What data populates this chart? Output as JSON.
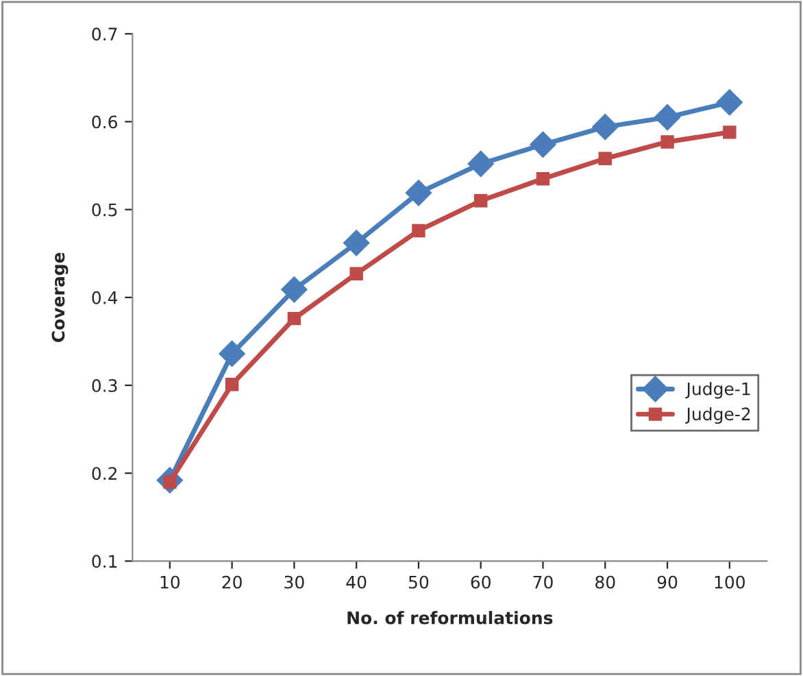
{
  "chart_data": {
    "type": "line",
    "xlabel": "No. of reformulations",
    "ylabel": "Coverage",
    "categories": [
      "10",
      "20",
      "30",
      "40",
      "50",
      "60",
      "70",
      "80",
      "90",
      "100"
    ],
    "series": [
      {
        "name": "Judge-1",
        "color": "#4a7ebb",
        "marker": "diamond",
        "values": [
          0.192,
          0.336,
          0.409,
          0.462,
          0.519,
          0.552,
          0.574,
          0.594,
          0.605,
          0.622
        ]
      },
      {
        "name": "Judge-2",
        "color": "#be4b48",
        "marker": "square",
        "values": [
          0.19,
          0.301,
          0.376,
          0.427,
          0.476,
          0.51,
          0.535,
          0.558,
          0.577,
          0.588
        ]
      }
    ],
    "ylim": [
      0.1,
      0.7
    ],
    "yticks": [
      0.1,
      0.2,
      0.3,
      0.4,
      0.5,
      0.6,
      0.7
    ],
    "grid": false,
    "legend": "right",
    "line_style": "solid"
  }
}
